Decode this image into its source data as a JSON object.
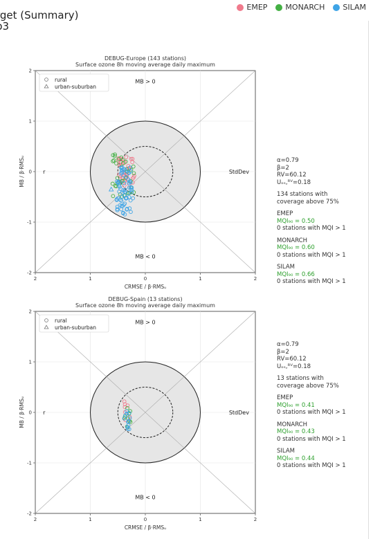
{
  "page": {
    "title_line1": "rget (Summary)",
    "title_line2": "p3"
  },
  "legend": [
    {
      "label": "EMEP",
      "color": "#f07a8c"
    },
    {
      "label": "MONARCH",
      "color": "#44b044"
    },
    {
      "label": "SILAM",
      "color": "#3ea4e6"
    }
  ],
  "chart_data": [
    {
      "type": "scatter",
      "title": "DEBUG-Europe (143 stations)",
      "subtitle": "Surface ozone 8h moving average daily maximum",
      "xlabel": "CRMSE / β·RMSᵤ",
      "ylabel": "MB / β·RMSᵤ",
      "xticks": [
        "2",
        "1",
        "0",
        "1",
        "2"
      ],
      "yticks": [
        "2",
        "1",
        "0",
        "-1",
        "-2"
      ],
      "xlim": [
        -2,
        2
      ],
      "ylim": [
        -2,
        2
      ],
      "grid": true,
      "legend_placement": "top-left",
      "marker_legend": [
        "rural",
        "urban-suburban"
      ],
      "labels": {
        "top": "MB > 0",
        "bottom": "MB < 0",
        "left": "r",
        "right": "StdDev"
      },
      "target_radius": 1.0,
      "inner_radius": 0.5,
      "series": [
        {
          "name": "EMEP",
          "color": "#f07a8c",
          "x_range": [
            -0.5,
            -0.2
          ],
          "y_range": [
            -0.3,
            0.3
          ],
          "count": 40
        },
        {
          "name": "MONARCH",
          "color": "#44b044",
          "x_range": [
            -0.6,
            -0.2
          ],
          "y_range": [
            -0.5,
            0.35
          ],
          "count": 35
        },
        {
          "name": "SILAM",
          "color": "#3ea4e6",
          "x_range": [
            -0.52,
            -0.22
          ],
          "y_range": [
            -0.85,
            0.1
          ],
          "count": 70
        }
      ],
      "info": {
        "alpha": "α=0.79",
        "beta": "β=2",
        "rv": "RV=60.12",
        "u": "Uₒₛ,ᴿⱽ=0.18",
        "coverage": [
          "134 stations with",
          "coverage above 75%"
        ],
        "models": [
          {
            "name": "EMEP",
            "mqi": "MQI₉₀ = 0.50",
            "stations": "0 stations with MQI > 1"
          },
          {
            "name": "MONARCH",
            "mqi": "MQI₉₀ = 0.60",
            "stations": "0 stations with MQI > 1"
          },
          {
            "name": "SILAM",
            "mqi": "MQI₉₀ = 0.66",
            "stations": "0 stations with MQI > 1"
          }
        ]
      }
    },
    {
      "type": "scatter",
      "title": "DEBUG-Spain (13 stations)",
      "subtitle": "Surface ozone 8h moving average daily maximum",
      "xlabel": "CRMSE / β·RMSᵤ",
      "ylabel": "MB / β·RMSᵤ",
      "xticks": [
        "2",
        "1",
        "0",
        "1",
        "2"
      ],
      "yticks": [
        "2",
        "1",
        "0",
        "-1",
        "-2"
      ],
      "xlim": [
        -2,
        2
      ],
      "ylim": [
        -2,
        2
      ],
      "grid": true,
      "legend_placement": "top-left",
      "marker_legend": [
        "rural",
        "urban-suburban"
      ],
      "labels": {
        "top": "MB > 0",
        "bottom": "MB < 0",
        "left": "r",
        "right": "StdDev"
      },
      "target_radius": 1.0,
      "inner_radius": 0.5,
      "series": [
        {
          "name": "EMEP",
          "color": "#f07a8c",
          "x_range": [
            -0.4,
            -0.25
          ],
          "y_range": [
            -0.2,
            0.3
          ],
          "count": 8
        },
        {
          "name": "MONARCH",
          "color": "#44b044",
          "x_range": [
            -0.38,
            -0.25
          ],
          "y_range": [
            -0.3,
            0.1
          ],
          "count": 10
        },
        {
          "name": "SILAM",
          "color": "#3ea4e6",
          "x_range": [
            -0.4,
            -0.22
          ],
          "y_range": [
            -0.35,
            0.05
          ],
          "count": 12
        }
      ],
      "info": {
        "alpha": "α=0.79",
        "beta": "β=2",
        "rv": "RV=60.12",
        "u": "Uₒₛ,ᴿⱽ=0.18",
        "coverage": [
          "13 stations with",
          "coverage above 75%"
        ],
        "models": [
          {
            "name": "EMEP",
            "mqi": "MQI₉₀ = 0.41",
            "stations": "0 stations with MQI > 1"
          },
          {
            "name": "MONARCH",
            "mqi": "MQI₉₀ = 0.43",
            "stations": "0 stations with MQI > 1"
          },
          {
            "name": "SILAM",
            "mqi": "MQI₉₀ = 0.44",
            "stations": "0 stations with MQI > 1"
          }
        ]
      }
    }
  ]
}
